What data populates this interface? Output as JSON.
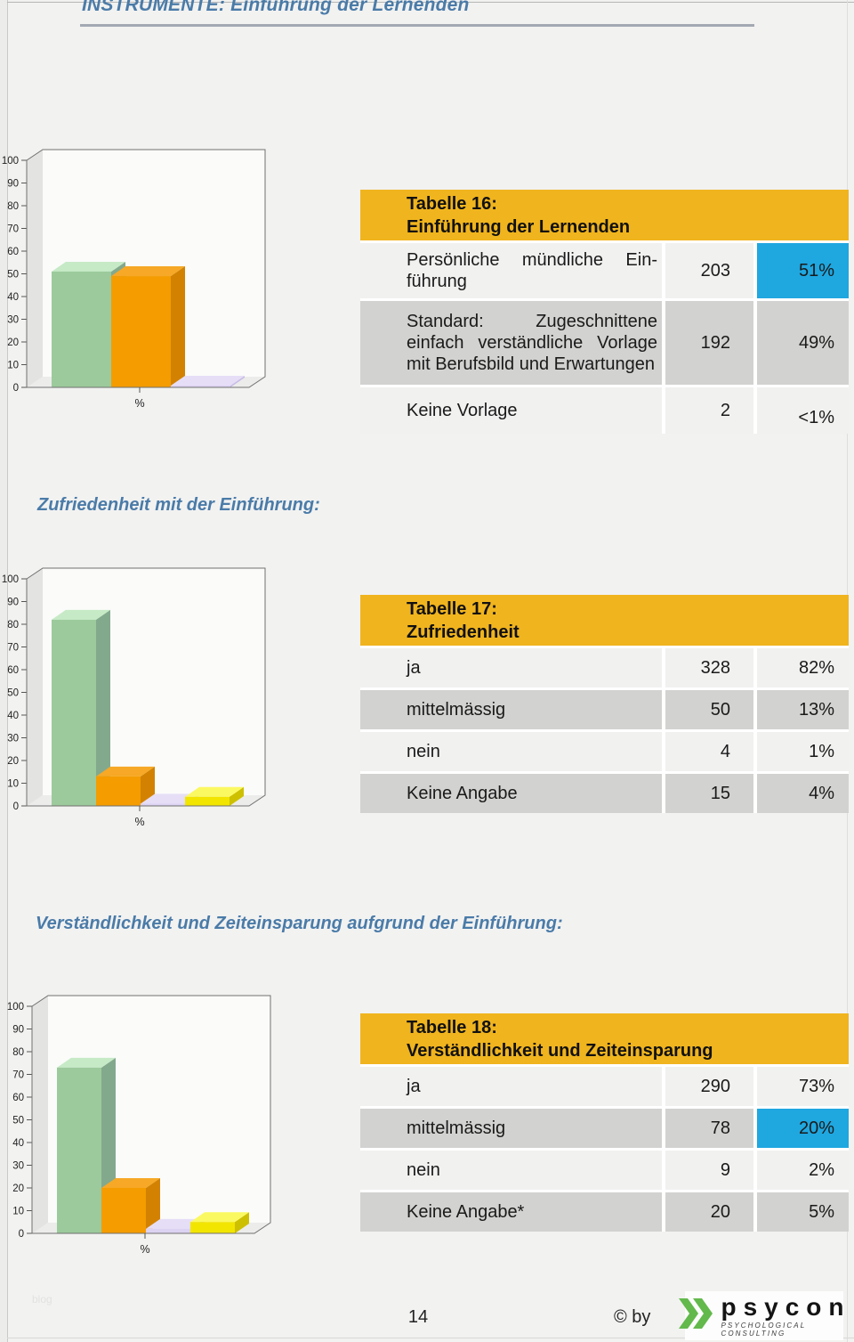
{
  "page": {
    "title": "INSTRUMENTE: Einführung der Lernenden",
    "footer": {
      "page_number": "14",
      "copyright": "© by",
      "watermark": "blog"
    },
    "logo": {
      "name": "psycon",
      "subtitle": "PSYCHOLOGICAL CONSULTING",
      "chevron_color": "#63B94C"
    },
    "colors": {
      "accent_yellow": "#F0B41E",
      "highlight_cyan": "#1FA7E0",
      "heading_blue": "#4A7BA8"
    }
  },
  "sections": [
    {
      "heading": "",
      "table": {
        "title_line1": "Tabelle 16:",
        "title_line2": "Einführung der Lernenden",
        "rows": [
          {
            "label": "Persönliche mündliche Ein­führung",
            "count": "203",
            "pct": "51%",
            "highlight": true
          },
          {
            "label": "Standard: Zugeschnittene einfach verständliche Vorlage mit Berufsbild und Erwartun­gen",
            "count": "192",
            "pct": "49%",
            "highlight": false
          },
          {
            "label": "Keine Vorlage",
            "count": "2",
            "pct": "<1%",
            "highlight": false
          }
        ]
      }
    },
    {
      "heading": "Zufriedenheit mit der Einführung:",
      "table": {
        "title_line1": "Tabelle 17:",
        "title_line2": "Zufriedenheit",
        "rows": [
          {
            "label": "ja",
            "count": "328",
            "pct": "82%",
            "highlight": false
          },
          {
            "label": "mittelmässig",
            "count": "50",
            "pct": "13%",
            "highlight": false
          },
          {
            "label": "nein",
            "count": "4",
            "pct": "1%",
            "highlight": false
          },
          {
            "label": "Keine Angabe",
            "count": "15",
            "pct": "4%",
            "highlight": false
          }
        ]
      }
    },
    {
      "heading": "Verständlichkeit und Zeiteinsparung aufgrund der Einführung:",
      "table": {
        "title_line1": "Tabelle 18:",
        "title_line2": "Verständlichkeit und Zeiteinsparung",
        "rows": [
          {
            "label": "ja",
            "count": "290",
            "pct": "73%",
            "highlight": false
          },
          {
            "label": "mittelmässig",
            "count": "78",
            "pct": "20%",
            "highlight": true
          },
          {
            "label": "nein",
            "count": "9",
            "pct": "2%",
            "highlight": false
          },
          {
            "label": "Keine Angabe*",
            "count": "20",
            "pct": "5%",
            "highlight": false
          }
        ]
      }
    }
  ],
  "chart_data": [
    {
      "type": "bar",
      "title": "Einführung der Lernenden",
      "xlabel": "%",
      "ylabel": "",
      "ylim": [
        0,
        100
      ],
      "ytick_step": 10,
      "grid": false,
      "legend": "none",
      "style": "3d",
      "series": [
        {
          "name": "Persönliche mündliche Einführung",
          "value": 51,
          "colors": {
            "front": "#9CCA9C",
            "top": "#C6EAC6",
            "side": "#83A98D"
          }
        },
        {
          "name": "Standard: Zugeschnittene einfach verständliche Vorlage mit Berufsbild und Erwartungen",
          "value": 49,
          "colors": {
            "front": "#F49C00",
            "top": "#F6A826",
            "side": "#D28200"
          }
        },
        {
          "name": "Keine Vorlage",
          "value": 0.5,
          "colors": {
            "front": "#DCD2F1",
            "top": "#E6DEF7",
            "side": "#C8BCE6"
          }
        }
      ]
    },
    {
      "type": "bar",
      "title": "Zufriedenheit",
      "xlabel": "%",
      "ylabel": "",
      "ylim": [
        0,
        100
      ],
      "ytick_step": 10,
      "grid": false,
      "legend": "none",
      "style": "3d",
      "series": [
        {
          "name": "ja",
          "value": 82,
          "colors": {
            "front": "#9CCA9C",
            "top": "#C6EAC6",
            "side": "#83A98D"
          }
        },
        {
          "name": "mittelmässig",
          "value": 13,
          "colors": {
            "front": "#F49C00",
            "top": "#F6A826",
            "side": "#D28200"
          }
        },
        {
          "name": "nein",
          "value": 1,
          "colors": {
            "front": "#DCD2F1",
            "top": "#E6DEF7",
            "side": "#C8BCE6"
          }
        },
        {
          "name": "Keine Angabe",
          "value": 4,
          "colors": {
            "front": "#F2E500",
            "top": "#FBF962",
            "side": "#CDC000"
          }
        }
      ]
    },
    {
      "type": "bar",
      "title": "Verständlichkeit und Zeiteinsparung",
      "xlabel": "%",
      "ylabel": "",
      "ylim": [
        0,
        100
      ],
      "ytick_step": 10,
      "grid": false,
      "legend": "none",
      "style": "3d",
      "series": [
        {
          "name": "ja",
          "value": 73,
          "colors": {
            "front": "#9CCA9C",
            "top": "#C6EAC6",
            "side": "#83A98D"
          }
        },
        {
          "name": "mittelmässig",
          "value": 20,
          "colors": {
            "front": "#F49C00",
            "top": "#F6A826",
            "side": "#D28200"
          }
        },
        {
          "name": "nein",
          "value": 2,
          "colors": {
            "front": "#DCD2F1",
            "top": "#E6DEF7",
            "side": "#C8BCE6"
          }
        },
        {
          "name": "Keine Angabe*",
          "value": 5,
          "colors": {
            "front": "#F2E500",
            "top": "#FBF962",
            "side": "#CDC000"
          }
        }
      ]
    }
  ]
}
